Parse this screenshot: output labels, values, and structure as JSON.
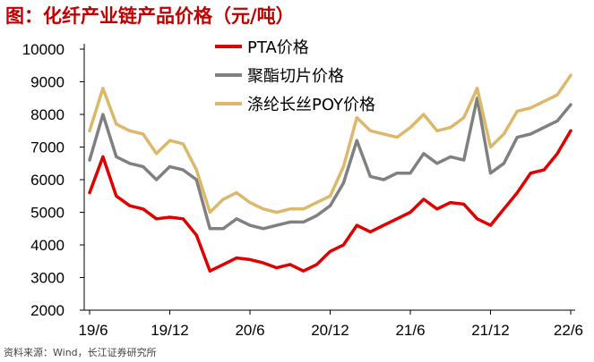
{
  "title": "图：化纤产业链产品价格（元/吨）",
  "source": "资料来源：Wind，长江证券研究所",
  "chart_data": {
    "type": "line",
    "title": "图：化纤产业链产品价格（元/吨）",
    "xlabel": "",
    "ylabel": "",
    "ylim": [
      2000,
      10000
    ],
    "yticks": [
      2000,
      3000,
      4000,
      5000,
      6000,
      7000,
      8000,
      9000,
      10000
    ],
    "x_tick_labels": [
      "19/6",
      "19/12",
      "20/6",
      "20/12",
      "21/6",
      "21/12",
      "22/6"
    ],
    "x_tick_index": [
      0,
      6,
      12,
      18,
      24,
      30,
      36
    ],
    "grid": false,
    "legend_position": "top-right",
    "x": [
      "19/6",
      "19/7",
      "19/8",
      "19/9",
      "19/10",
      "19/11",
      "19/12",
      "20/1",
      "20/2",
      "20/3",
      "20/4",
      "20/5",
      "20/6",
      "20/7",
      "20/8",
      "20/9",
      "20/10",
      "20/11",
      "20/12",
      "21/1",
      "21/2",
      "21/3",
      "21/4",
      "21/5",
      "21/6",
      "21/7",
      "21/8",
      "21/9",
      "21/10",
      "21/11",
      "21/12",
      "22/1",
      "22/2",
      "22/3",
      "22/4",
      "22/5",
      "22/6"
    ],
    "series": [
      {
        "name": "PTA价格",
        "color": "#e00000",
        "values": [
          5600,
          6700,
          5500,
          5200,
          5100,
          4800,
          4850,
          4800,
          4300,
          3200,
          3400,
          3600,
          3550,
          3450,
          3300,
          3400,
          3200,
          3400,
          3800,
          4000,
          4600,
          4400,
          4600,
          4800,
          5000,
          5400,
          5100,
          5300,
          5250,
          4800,
          4600,
          5100,
          5600,
          6200,
          6300,
          6800,
          7500
        ]
      },
      {
        "name": "聚酯切片价格",
        "color": "#808080",
        "values": [
          6600,
          8000,
          6700,
          6500,
          6400,
          6000,
          6400,
          6300,
          6000,
          4500,
          4500,
          4800,
          4600,
          4500,
          4600,
          4700,
          4700,
          4900,
          5200,
          5900,
          7200,
          6100,
          6000,
          6200,
          6200,
          6800,
          6500,
          6700,
          6600,
          8500,
          6200,
          6500,
          7300,
          7400,
          7600,
          7800,
          8300
        ]
      },
      {
        "name": "涤纶长丝POY价格",
        "color": "#dbb86a",
        "values": [
          7500,
          8800,
          7700,
          7500,
          7400,
          6800,
          7200,
          7100,
          6300,
          5000,
          5400,
          5600,
          5300,
          5100,
          5000,
          5100,
          5100,
          5300,
          5500,
          6400,
          7900,
          7500,
          7400,
          7300,
          7600,
          8000,
          7500,
          7600,
          7900,
          8800,
          7000,
          7400,
          8100,
          8200,
          8400,
          8600,
          9200
        ]
      }
    ]
  }
}
